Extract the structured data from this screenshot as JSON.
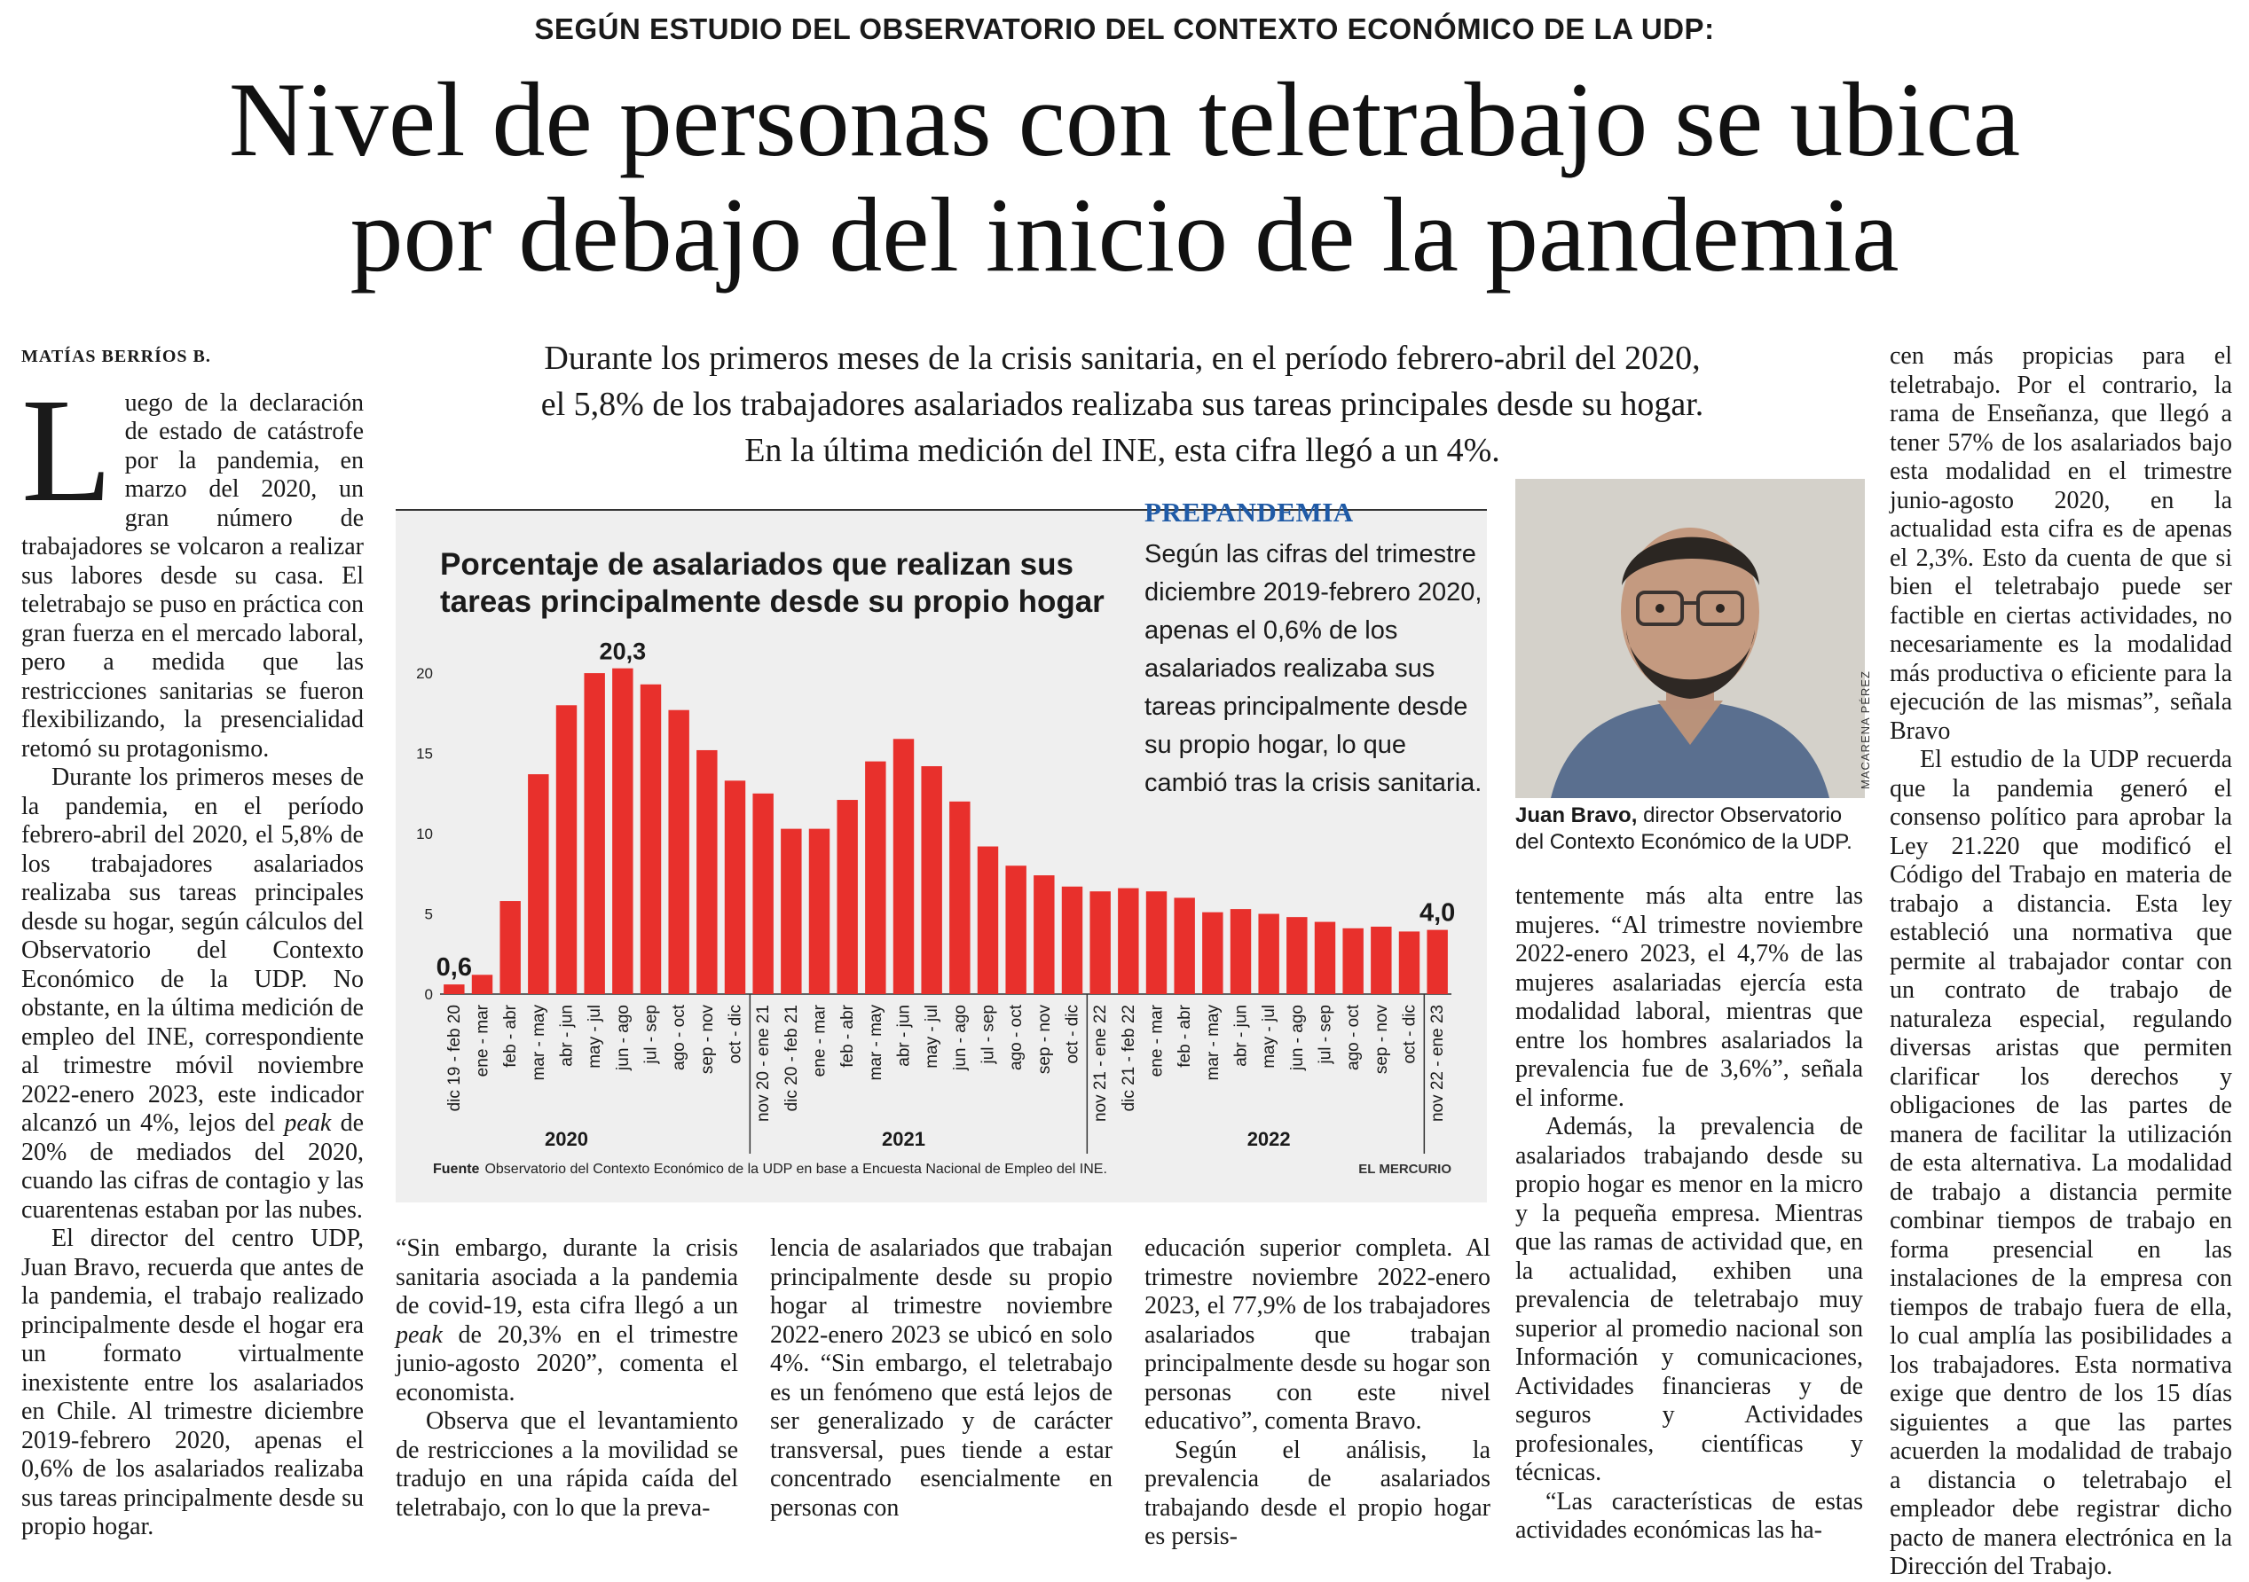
{
  "kicker": "SEGÚN ESTUDIO DEL OBSERVATORIO DEL CONTEXTO ECONÓMICO DE LA UDP:",
  "headline": {
    "line1": "Nivel de personas con teletrabajo se ubica",
    "line2": "por debajo del inicio de la pandemia"
  },
  "byline": "MATÍAS BERRÍOS B.",
  "deck": {
    "line1": "Durante los primeros meses de la crisis sanitaria, en el período febrero-abril del 2020,",
    "line2": "el 5,8% de los trabajadores asalariados realizaba sus tareas principales desde su hogar.",
    "line3": "En la última medición del INE, esta cifra llegó a un 4%."
  },
  "col1": {
    "dropcap": "L",
    "p1": "uego de la declaración de estado de catástrofe por la pandemia, en marzo del 2020, un gran número de trabajadores se volcaron a realizar sus labores desde su casa. El teletrabajo se puso en práctica con gran fuerza en el mercado laboral, pero a medida que las restricciones sanitarias se fueron flexibilizando, la presencialidad retomó su protagonismo.",
    "p2": "Durante los primeros meses de la pandemia, en el período febrero-abril del 2020, el 5,8% de los trabajadores asalariados realizaba sus tareas principales desde su hogar, según cálculos del Observatorio del Contexto Económico de la UDP. No obstante, en la última medición de empleo del INE, correspondiente al trimestre móvil noviembre 2022-enero 2023, este indicador alcanzó un 4%, lejos del",
    "p2_peak": "peak",
    "p2_end": "de 20% de mediados del 2020, cuando las cifras de contagio y las cuarentenas estaban por las nubes.",
    "p3": "El director del centro UDP, Juan Bravo, recuerda que antes de la pandemia, el trabajo realizado principalmente desde el hogar era un formato virtualmente inexistente entre los asalariados en Chile. Al trimestre diciembre 2019-febrero 2020, apenas el 0,6% de los asalariados realizaba sus tareas principalmente desde su propio hogar."
  },
  "col2": {
    "p1a": "“Sin embargo, durante la crisis sanitaria asociada a la pandemia de covid-19, esta cifra llegó a un",
    "p1_peak": "peak",
    "p1b": "de 20,3% en el trimestre junio-agosto 2020”, comenta el economista.",
    "p2": "Observa que el levantamiento de restricciones a la movilidad se tradujo en una rápida caída del teletrabajo, con lo que la preva-"
  },
  "col3": {
    "p1": "lencia de asalariados que trabajan principalmente desde su propio hogar al trimestre noviembre 2022-enero 2023 se ubicó en solo 4%. “Sin embargo, el teletrabajo es un fenómeno que está lejos de ser generalizado y de carácter transversal, pues tiende a estar concentrado esencialmente en personas con"
  },
  "col4": {
    "p1": "educación superior completa. Al trimestre noviembre 2022-enero 2023, el 77,9% de los trabajadores asalariados que trabajan principalmente desde su hogar son personas con este nivel educativo”, comenta Bravo.",
    "p2": "Según el análisis, la prevalencia de asalariados trabajando desde el propio hogar es persis-"
  },
  "col5": {
    "p1": "tentemente más alta entre las mujeres. “Al trimestre noviembre 2022-enero 2023, el 4,7% de las mujeres asalariadas ejercía esta modalidad laboral, mientras que entre los hombres asalariados la prevalencia fue de 3,6%”, señala el informe.",
    "p2": "Además, la prevalencia de asalariados trabajando desde su propio hogar es menor en la micro y la pequeña empresa. Mientras que las ramas de actividad que, en la actualidad, exhiben una prevalencia de teletrabajo muy superior al promedio nacional son Información y comunicaciones, Actividades financieras y de seguros y Actividades profesionales, científicas y técnicas.",
    "p3": "“Las características de estas actividades económicas las ha-"
  },
  "col6": {
    "p1": "cen más propicias para el teletrabajo. Por el contrario, la rama de Enseñanza, que llegó a tener 57% de los asalariados bajo esta modalidad en el trimestre junio-agosto 2020, en la actualidad esta cifra es de apenas el 2,3%. Esto da cuenta de que si bien el teletrabajo puede ser factible en ciertas actividades, no necesariamente es la modalidad más productiva o eficiente para la ejecución de las mismas”, señala Bravo",
    "p2": "El estudio de la UDP recuerda que la pandemia generó el consenso político para aprobar la Ley 21.220 que modificó el Código del Trabajo en materia de trabajo a distancia. Esta ley estableció una normativa que permite al trabajador contar con un contrato de trabajo de naturaleza especial, regulando diversas aristas que permiten clarificar los derechos y obligaciones de las partes de manera de facilitar la utilización de esta alternativa. La modalidad de trabajo a distancia permite combinar tiempos de trabajo en forma presencial en las instalaciones de la empresa con tiempos de trabajo fuera de ella, lo cual amplía las posibilidades a los trabajadores. Esta normativa exige que dentro de los 15 días siguientes a que las partes acuerden la modalidad de trabajo a distancia o teletrabajo el empleador debe registrar dicho pacto de manera electrónica en la Dirección del Trabajo."
  },
  "sidebar": {
    "heading": "PREPANDEMIA",
    "body": "Según las cifras del trimestre diciembre 2019-febrero 2020, apenas el 0,6% de los asalariados realizaba sus tareas principalmente desde su propio hogar, lo que cambió tras la crisis sanitaria."
  },
  "photo": {
    "caption_name": "Juan Bravo,",
    "caption_rest": "director Observatorio del Contexto Económico de la UDP.",
    "credit": "MACARENA PÉREZ"
  },
  "chart_data": {
    "type": "bar",
    "title": "Porcentaje de asalariados que realizan sus tareas principalmente desde su propio hogar",
    "categories": [
      "dic 19 - feb 20",
      "ene - mar",
      "feb - abr",
      "mar - may",
      "abr - jun",
      "may - jul",
      "jun - ago",
      "jul - sep",
      "ago - oct",
      "sep - nov",
      "oct - dic",
      "nov 20 - ene 21",
      "dic 20 - feb 21",
      "ene - mar",
      "feb - abr",
      "mar - may",
      "abr - jun",
      "may - jul",
      "jun - ago",
      "jul - sep",
      "ago - oct",
      "sep - nov",
      "oct - dic",
      "nov 21 - ene 22",
      "dic 21 - feb 22",
      "ene - mar",
      "feb - abr",
      "mar - may",
      "abr - jun",
      "may - jul",
      "jun - ago",
      "jul - sep",
      "ago - oct",
      "sep - nov",
      "oct - dic",
      "nov 22 - ene 23"
    ],
    "values": [
      0.6,
      1.2,
      5.8,
      13.7,
      18.0,
      20.0,
      20.3,
      19.3,
      17.7,
      15.2,
      13.3,
      12.5,
      10.3,
      10.3,
      12.1,
      14.5,
      15.9,
      14.2,
      12.0,
      9.2,
      8.0,
      7.4,
      6.7,
      6.4,
      6.6,
      6.4,
      6.0,
      5.1,
      5.3,
      5.0,
      4.8,
      4.5,
      4.1,
      4.2,
      3.9,
      4.0
    ],
    "value_labels": {
      "0": "0,6",
      "6": "20,3",
      "35": "4,0"
    },
    "year_labels": [
      {
        "label": "2020",
        "index": 4
      },
      {
        "label": "2021",
        "index": 16
      },
      {
        "label": "2022",
        "index": 29
      }
    ],
    "year_separators": [
      11,
      23,
      35
    ],
    "yticks": [
      0,
      5,
      10,
      15,
      20
    ],
    "ylim": [
      0,
      21
    ],
    "bar_color": "#e8302c",
    "grid": false,
    "source_label": "Fuente",
    "source": "Observatorio del Contexto Económico de la UDP en base a Encuesta Nacional de Empleo del INE.",
    "credit": "EL MERCURIO"
  }
}
